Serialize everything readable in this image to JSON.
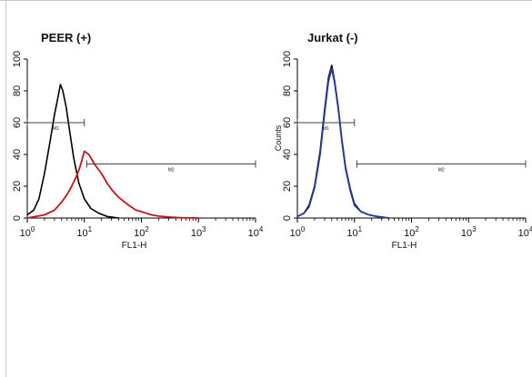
{
  "chart_data": [
    {
      "type": "line",
      "title": "PEER (+)",
      "xlabel": "FL1-H",
      "ylabel": "",
      "x_scale": "log",
      "xlim": [
        1,
        10000
      ],
      "ylim": [
        0,
        100
      ],
      "x_ticks": [
        1,
        10,
        100,
        1000,
        10000
      ],
      "x_tick_labels": [
        {
          "base": "10",
          "exp": "0"
        },
        {
          "base": "10",
          "exp": "1"
        },
        {
          "base": "10",
          "exp": "2"
        },
        {
          "base": "10",
          "exp": "3"
        },
        {
          "base": "10",
          "exp": "4"
        }
      ],
      "y_tick_labels": [
        "0",
        "20",
        "40",
        "60",
        "80",
        "100"
      ],
      "gates": [
        {
          "label": "M1",
          "x_start": 1,
          "x_end": 10,
          "y": 60
        },
        {
          "label": "M2",
          "x_start": 11,
          "x_end": 10000,
          "y": 34
        }
      ],
      "series": [
        {
          "color": "#000000",
          "x": [
            1,
            1.3,
            1.6,
            2.0,
            2.5,
            3.0,
            3.4,
            3.8,
            4.2,
            4.8,
            5.5,
            6.5,
            8,
            10,
            13,
            18,
            25,
            40
          ],
          "y": [
            2,
            5,
            12,
            28,
            48,
            65,
            75,
            84,
            80,
            70,
            55,
            38,
            22,
            12,
            6,
            3,
            1,
            0
          ]
        },
        {
          "color": "#c0181c",
          "x": [
            1,
            2,
            3,
            4,
            5,
            6,
            7,
            8,
            9,
            10,
            12,
            15,
            20,
            25,
            30,
            40,
            60,
            80,
            100,
            150,
            200,
            300,
            500,
            1000
          ],
          "y": [
            0,
            2,
            5,
            10,
            15,
            20,
            25,
            30,
            36,
            42,
            40,
            34,
            28,
            22,
            18,
            13,
            8,
            5,
            4,
            2,
            1.2,
            0.6,
            0.2,
            0
          ]
        }
      ]
    },
    {
      "type": "line",
      "title": "Jurkat (-)",
      "xlabel": "FL1-H",
      "ylabel": "Counts",
      "x_scale": "log",
      "xlim": [
        1,
        10000
      ],
      "ylim": [
        0,
        100
      ],
      "x_ticks": [
        1,
        10,
        100,
        1000,
        10000
      ],
      "x_tick_labels": [
        {
          "base": "10",
          "exp": "0"
        },
        {
          "base": "10",
          "exp": "1"
        },
        {
          "base": "10",
          "exp": "2"
        },
        {
          "base": "10",
          "exp": "3"
        },
        {
          "base": "10",
          "exp": "4"
        }
      ],
      "y_tick_labels": [
        "0",
        "20",
        "40",
        "60",
        "80",
        "100"
      ],
      "gates": [
        {
          "label": "M1",
          "x_start": 1,
          "x_end": 10,
          "y": 60
        },
        {
          "label": "M2",
          "x_start": 11,
          "x_end": 10000,
          "y": 34
        }
      ],
      "series": [
        {
          "color": "#000000",
          "x": [
            1,
            1.3,
            1.6,
            2.0,
            2.5,
            3.0,
            3.5,
            4.0,
            4.5,
            5.2,
            6,
            7,
            8.5,
            10,
            13,
            18,
            25,
            40
          ],
          "y": [
            1,
            3,
            8,
            20,
            42,
            68,
            88,
            96,
            86,
            70,
            50,
            32,
            18,
            9,
            4,
            2,
            1,
            0
          ]
        },
        {
          "color": "#2b3a9a",
          "x": [
            1,
            1.3,
            1.6,
            2.0,
            2.5,
            3.0,
            3.5,
            4.0,
            4.5,
            5.2,
            6,
            7,
            8.5,
            10,
            13,
            18,
            25,
            40
          ],
          "y": [
            1,
            3,
            7,
            19,
            40,
            66,
            86,
            94,
            85,
            69,
            49,
            31,
            17,
            8,
            4,
            2,
            1,
            0
          ]
        }
      ]
    }
  ]
}
